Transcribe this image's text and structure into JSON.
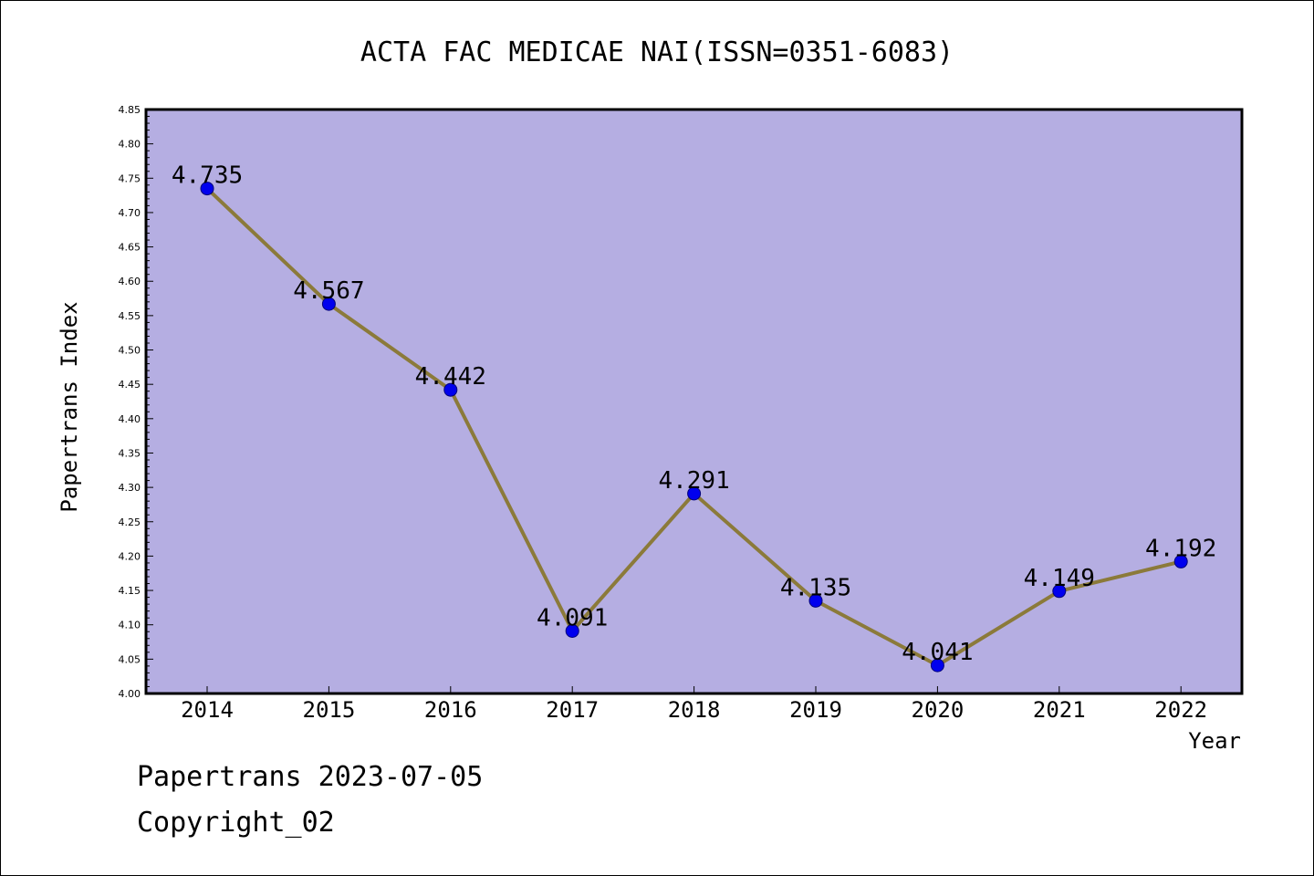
{
  "chart_data": {
    "type": "line",
    "title": "ACTA FAC MEDICAE NAI(ISSN=0351-6083)",
    "xlabel": "Year",
    "ylabel": "Papertrans Index",
    "categories": [
      "2014",
      "2015",
      "2016",
      "2017",
      "2018",
      "2019",
      "2020",
      "2021",
      "2022"
    ],
    "series": [
      {
        "values": [
          4.735,
          4.567,
          4.442,
          4.091,
          4.291,
          4.135,
          4.041,
          4.149,
          4.192
        ],
        "data_labels": [
          "4.735",
          "4.567",
          "4.442",
          "4.091",
          "4.291",
          "4.135",
          "4.041",
          "4.149",
          "4.192"
        ]
      }
    ],
    "ylim": [
      4.0,
      4.85
    ],
    "yticks": [
      "4.00",
      "4.05",
      "4.10",
      "4.15",
      "4.20",
      "4.25",
      "4.30",
      "4.35",
      "4.40",
      "4.45",
      "4.50",
      "4.55",
      "4.60",
      "4.65",
      "4.70",
      "4.75",
      "4.80",
      "4.85"
    ],
    "grid": false,
    "legend": "none",
    "colors": {
      "plot_background": "#b5aee2",
      "line": "#8b7a3a",
      "marker": "#0000ee"
    }
  },
  "footer": {
    "line1": "Papertrans 2023-07-05",
    "line2": "Copyright_02"
  }
}
